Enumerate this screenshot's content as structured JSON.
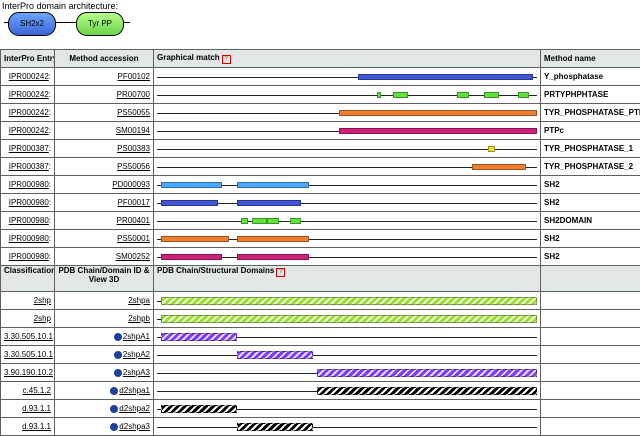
{
  "arch": {
    "title": "InterPro domain architecture:",
    "domains": [
      "SH2x2",
      "Tyr PP"
    ]
  },
  "header": {
    "col1": "InterPro Entry",
    "col2": "Method accession",
    "col3": "Graphical match",
    "col4": "Method name",
    "help": "?"
  },
  "rows": [
    {
      "entry": "IPR000242",
      "acc": "PF00102",
      "name": "Y_phosphatase",
      "segs": [
        {
          "start": 53,
          "end": 99,
          "color": "#3f55d6"
        }
      ]
    },
    {
      "entry": "IPR000242",
      "acc": "PR00700",
      "name": "PRTYPHPHTASE",
      "segs": [
        {
          "start": 58,
          "end": 59,
          "color": "#5fe23a"
        },
        {
          "start": 62,
          "end": 66,
          "color": "#5fe23a"
        },
        {
          "start": 79,
          "end": 82,
          "color": "#5fe23a"
        },
        {
          "start": 86,
          "end": 90,
          "color": "#5fe23a"
        },
        {
          "start": 95,
          "end": 98,
          "color": "#5fe23a"
        }
      ]
    },
    {
      "entry": "IPR000242",
      "acc": "PS50055",
      "name": "TYR_PHOSPHATASE_PTP",
      "segs": [
        {
          "start": 48,
          "end": 100,
          "color": "#f08030"
        }
      ]
    },
    {
      "entry": "IPR000242",
      "acc": "SM00194",
      "name": "PTPc",
      "segs": [
        {
          "start": 48,
          "end": 100,
          "color": "#d01f7a"
        }
      ]
    },
    {
      "entry": "IPR000387",
      "acc": "PS00383",
      "name": "TYR_PHOSPHATASE_1",
      "segs": [
        {
          "start": 87,
          "end": 89,
          "color": "#f0e030"
        }
      ]
    },
    {
      "entry": "IPR000387",
      "acc": "PS50056",
      "name": "TYR_PHOSPHATASE_2",
      "segs": [
        {
          "start": 83,
          "end": 97,
          "color": "#f08030"
        }
      ]
    },
    {
      "entry": "IPR000980",
      "acc": "PD000093",
      "name": "SH2",
      "segs": [
        {
          "start": 1,
          "end": 17,
          "color": "#4aa8ff"
        },
        {
          "start": 21,
          "end": 40,
          "color": "#4aa8ff"
        }
      ]
    },
    {
      "entry": "IPR000980",
      "acc": "PF00017",
      "name": "SH2",
      "segs": [
        {
          "start": 1,
          "end": 16,
          "color": "#3f55d6"
        },
        {
          "start": 21,
          "end": 38,
          "color": "#3f55d6"
        }
      ]
    },
    {
      "entry": "IPR000980",
      "acc": "PR00401",
      "name": "SH2DOMAIN",
      "segs": [
        {
          "start": 22,
          "end": 24,
          "color": "#5fe23a"
        },
        {
          "start": 25,
          "end": 29,
          "color": "#5fe23a"
        },
        {
          "start": 29,
          "end": 32,
          "color": "#5fe23a"
        },
        {
          "start": 35,
          "end": 38,
          "color": "#5fe23a"
        }
      ]
    },
    {
      "entry": "IPR000980",
      "acc": "PS50001",
      "name": "SH2",
      "segs": [
        {
          "start": 1,
          "end": 19,
          "color": "#f08030"
        },
        {
          "start": 21,
          "end": 40,
          "color": "#f08030"
        }
      ]
    },
    {
      "entry": "IPR000980",
      "acc": "SM00252",
      "name": "SH2",
      "segs": [
        {
          "start": 1,
          "end": 17,
          "color": "#d01f7a"
        },
        {
          "start": 21,
          "end": 40,
          "color": "#d01f7a"
        }
      ]
    }
  ],
  "header2": {
    "col1": "Classification",
    "col2": "PDB Chain/Domain ID & View 3D",
    "col3": "PDB Chain/Structural Domains",
    "help": "?"
  },
  "pdbrows": [
    {
      "cls": "2shp",
      "pdb": "2shpa",
      "icon": false,
      "segs": [
        {
          "start": 1,
          "end": 100,
          "style": "g"
        }
      ]
    },
    {
      "cls": "2shp",
      "pdb": "2shpb",
      "icon": false,
      "segs": [
        {
          "start": 1,
          "end": 100,
          "style": "g"
        }
      ]
    },
    {
      "cls": "3.30.505.10.1",
      "pdb": "2shpA1",
      "icon": true,
      "segs": [
        {
          "start": 1,
          "end": 21,
          "style": "p"
        }
      ]
    },
    {
      "cls": "3.30.505.10.1",
      "pdb": "2shpA2",
      "icon": true,
      "segs": [
        {
          "start": 21,
          "end": 41,
          "style": "p"
        }
      ]
    },
    {
      "cls": "3.90.190.10.2",
      "pdb": "2shpA3",
      "icon": true,
      "segs": [
        {
          "start": 42,
          "end": 100,
          "style": "p"
        }
      ]
    },
    {
      "cls": "c.45.1.2",
      "pdb": "d2shpa1",
      "icon": true,
      "segs": [
        {
          "start": 42,
          "end": 100,
          "style": "k"
        }
      ]
    },
    {
      "cls": "d.93.1.1",
      "pdb": "d2shpa2",
      "icon": true,
      "segs": [
        {
          "start": 1,
          "end": 21,
          "style": "k"
        }
      ]
    },
    {
      "cls": "d.93.1.1",
      "pdb": "d2shpa3",
      "icon": true,
      "segs": [
        {
          "start": 21,
          "end": 41,
          "style": "k"
        }
      ]
    }
  ]
}
